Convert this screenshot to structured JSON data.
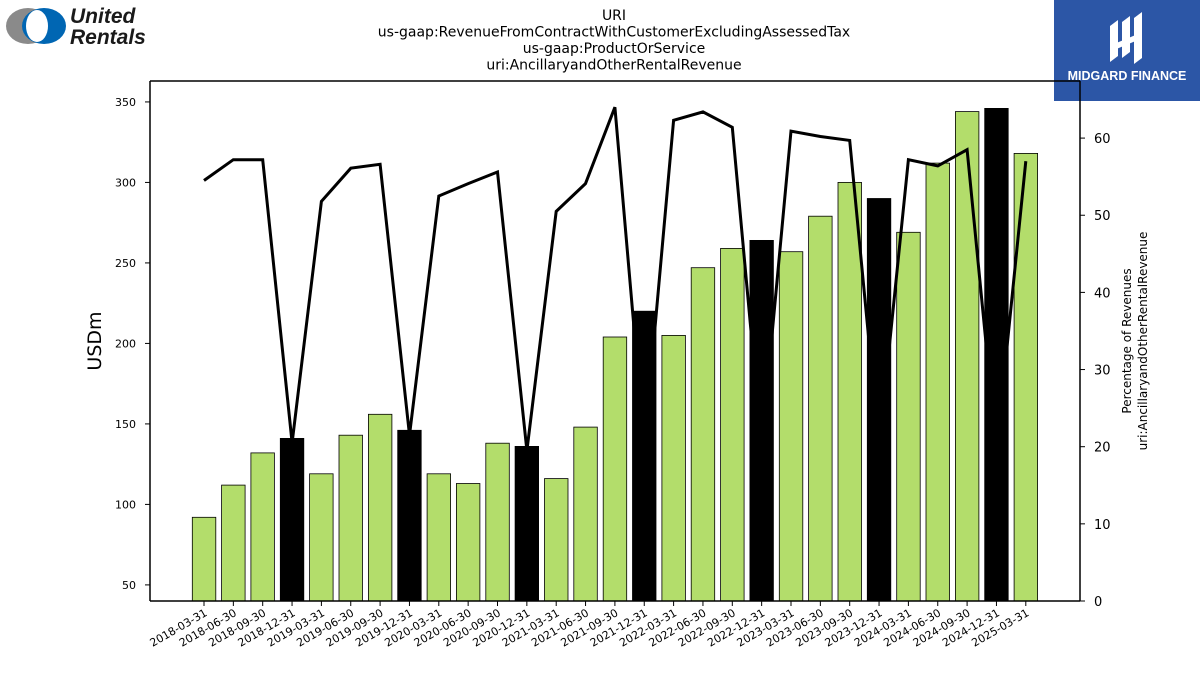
{
  "brand_left": {
    "line1": "United",
    "line2": "Rentals"
  },
  "brand_right": {
    "name": "MIDGARD FINANCE"
  },
  "colors": {
    "bar_green": "#b3dd6b",
    "bar_black": "#000000",
    "line": "#000000",
    "brand_blue": "#2c56a6",
    "logo_gray": "#8a8a8a",
    "logo_blue": "#0066b3"
  },
  "chart_data": {
    "type": "bar",
    "title_lines": [
      "URI",
      "us-gaap:RevenueFromContractWithCustomerExcludingAssessedTax",
      "us-gaap:ProductOrService",
      "uri:AncillaryandOtherRentalRevenue"
    ],
    "ylabel": "USDm",
    "y2label_lines": [
      "Percentage of Revenues",
      "uri:AncillaryandOtherRentalRevenue"
    ],
    "ylim": [
      40,
      363
    ],
    "y2lim": [
      0,
      67.4
    ],
    "yticks": [
      50,
      100,
      150,
      200,
      250,
      300,
      350
    ],
    "y2ticks": [
      0,
      10,
      20,
      30,
      40,
      50,
      60
    ],
    "categories": [
      "2018-03-31",
      "2018-06-30",
      "2018-09-30",
      "2018-12-31",
      "2019-03-31",
      "2019-06-30",
      "2019-09-30",
      "2019-12-31",
      "2020-03-31",
      "2020-06-30",
      "2020-09-30",
      "2020-12-31",
      "2021-03-31",
      "2021-06-30",
      "2021-09-30",
      "2021-12-31",
      "2022-03-31",
      "2022-06-30",
      "2022-09-30",
      "2022-12-31",
      "2023-03-31",
      "2023-06-30",
      "2023-09-30",
      "2023-12-31",
      "2024-03-31",
      "2024-06-30",
      "2024-09-30",
      "2024-12-31",
      "2025-03-31"
    ],
    "series": [
      {
        "type": "bar",
        "values": [
          92,
          112,
          132,
          141,
          119,
          143,
          156,
          146,
          119,
          113,
          138,
          136,
          116,
          148,
          204,
          220,
          205,
          247,
          259,
          264,
          257,
          279,
          300,
          290,
          269,
          312,
          344,
          346,
          318
        ],
        "highlight": [
          false,
          false,
          false,
          true,
          false,
          false,
          false,
          true,
          false,
          false,
          false,
          true,
          false,
          false,
          false,
          true,
          false,
          false,
          false,
          true,
          false,
          false,
          false,
          true,
          false,
          false,
          false,
          true,
          false
        ]
      },
      {
        "type": "line",
        "axis": "right",
        "values": [
          54.5,
          57.2,
          57.2,
          20.5,
          51.8,
          56.1,
          56.6,
          21.5,
          52.5,
          54.1,
          55.6,
          19.5,
          50.5,
          54.1,
          64.0,
          20.0,
          62.3,
          63.4,
          61.4,
          20.0,
          60.9,
          60.2,
          59.7,
          20.0,
          57.2,
          56.4,
          58.5,
          19.5,
          57.0
        ]
      }
    ]
  }
}
